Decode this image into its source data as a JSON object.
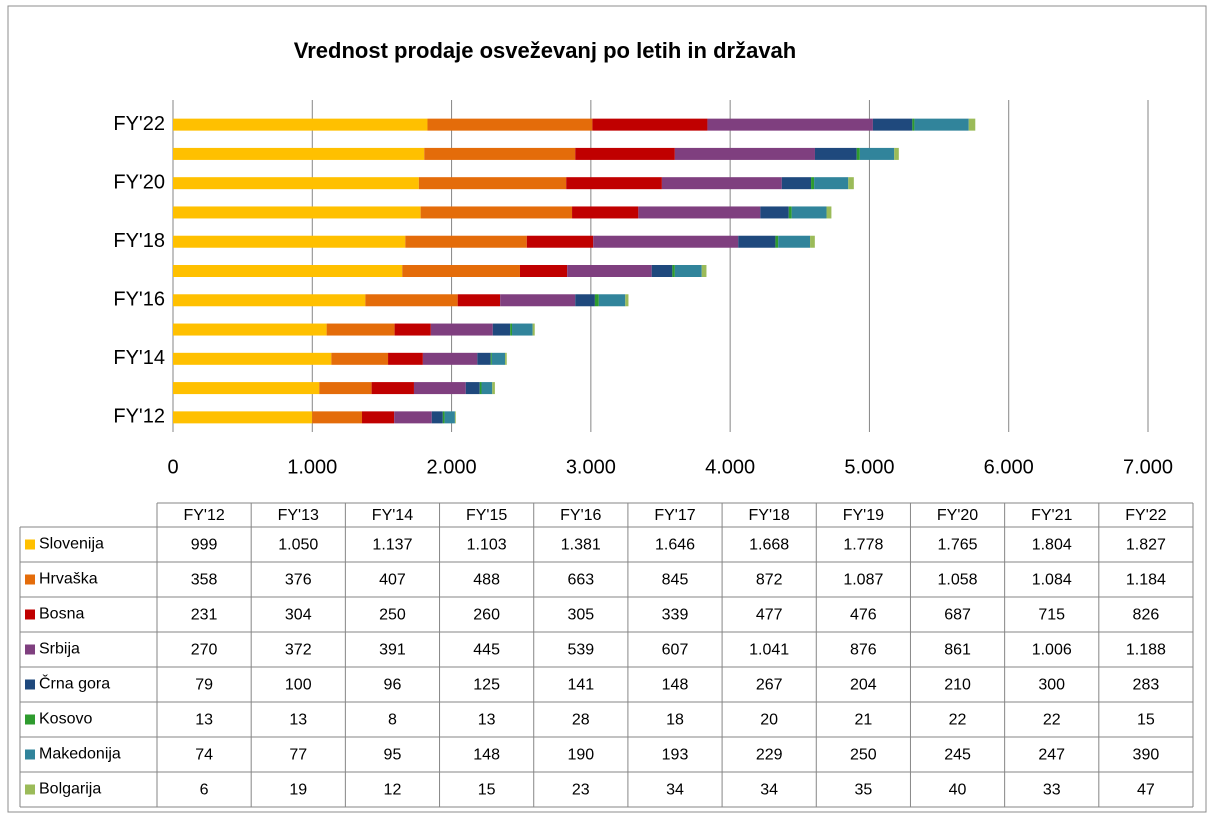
{
  "chart_data": {
    "type": "stacked_barh",
    "title": "Vrednost prodaje osveževanj po letih in državah",
    "categories": [
      "FY'12",
      "FY'13",
      "FY'14",
      "FY'15",
      "FY'16",
      "FY'17",
      "FY'18",
      "FY'19",
      "FY'20",
      "FY'21",
      "FY'22"
    ],
    "category_axis_interval": 2,
    "xlim": [
      0,
      7000
    ],
    "xticks": [
      0,
      {
        "value": 1000,
        "label": "1.000"
      },
      {
        "value": 2000,
        "label": "2.000"
      },
      {
        "value": 3000,
        "label": "3.000"
      },
      {
        "value": 4000,
        "label": "4.000"
      },
      {
        "value": 5000,
        "label": "5.000"
      },
      {
        "value": 6000,
        "label": "6.000"
      },
      {
        "value": 7000,
        "label": "7.000"
      }
    ],
    "grid": true,
    "data_table": true,
    "series": [
      {
        "name": "Slovenija",
        "color": "#FFC000",
        "values": [
          999,
          1050,
          1137,
          1103,
          1381,
          1646,
          1668,
          1778,
          1765,
          1804,
          1827
        ],
        "value_labels": [
          "999",
          "1.050",
          "1.137",
          "1.103",
          "1.381",
          "1.646",
          "1.668",
          "1.778",
          "1.765",
          "1.804",
          "1.827"
        ]
      },
      {
        "name": "Hrvaška",
        "color": "#E46C0A",
        "values": [
          358,
          376,
          407,
          488,
          663,
          845,
          872,
          1087,
          1058,
          1084,
          1184
        ],
        "value_labels": [
          "358",
          "376",
          "407",
          "488",
          "663",
          "845",
          "872",
          "1.087",
          "1.058",
          "1.084",
          "1.184"
        ]
      },
      {
        "name": "Bosna",
        "color": "#C00000",
        "values": [
          231,
          304,
          250,
          260,
          305,
          339,
          477,
          476,
          687,
          715,
          826
        ],
        "value_labels": [
          "231",
          "304",
          "250",
          "260",
          "305",
          "339",
          "477",
          "476",
          "687",
          "715",
          "826"
        ]
      },
      {
        "name": "Srbija",
        "color": "#7F3F7F",
        "values": [
          270,
          372,
          391,
          445,
          539,
          607,
          1041,
          876,
          861,
          1006,
          1188
        ],
        "value_labels": [
          "270",
          "372",
          "391",
          "445",
          "539",
          "607",
          "1.041",
          "876",
          "861",
          "1.006",
          "1.188"
        ]
      },
      {
        "name": "Črna gora",
        "color": "#1F497D",
        "values": [
          79,
          100,
          96,
          125,
          141,
          148,
          267,
          204,
          210,
          300,
          283
        ],
        "value_labels": [
          "79",
          "100",
          "96",
          "125",
          "141",
          "148",
          "267",
          "204",
          "210",
          "300",
          "283"
        ]
      },
      {
        "name": "Kosovo",
        "color": "#2E9B2E",
        "values": [
          13,
          13,
          8,
          13,
          28,
          18,
          20,
          21,
          22,
          22,
          15
        ],
        "value_labels": [
          "13",
          "13",
          "8",
          "13",
          "28",
          "18",
          "20",
          "21",
          "22",
          "22",
          "15"
        ]
      },
      {
        "name": "Makedonija",
        "color": "#31849B",
        "values": [
          74,
          77,
          95,
          148,
          190,
          193,
          229,
          250,
          245,
          247,
          390
        ],
        "value_labels": [
          "74",
          "77",
          "95",
          "148",
          "190",
          "193",
          "229",
          "250",
          "245",
          "247",
          "390"
        ]
      },
      {
        "name": "Bolgarija",
        "color": "#9BBB59",
        "values": [
          6,
          19,
          12,
          15,
          23,
          34,
          34,
          35,
          40,
          33,
          47
        ],
        "value_labels": [
          "6",
          "19",
          "12",
          "15",
          "23",
          "34",
          "34",
          "35",
          "40",
          "33",
          "47"
        ]
      }
    ]
  }
}
